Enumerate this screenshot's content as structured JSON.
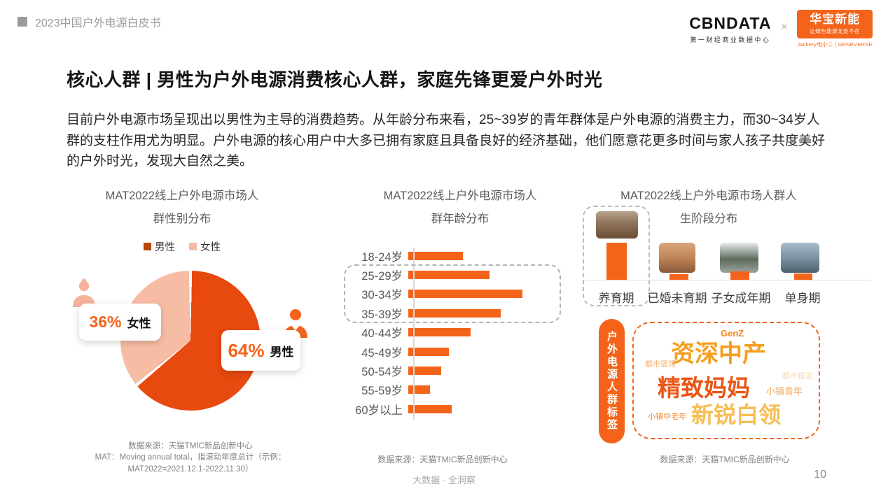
{
  "theme": {
    "accent_orange": "#F3641A",
    "title_gray": "#595959"
  },
  "header": {
    "breadcrumb": "2023中国户外电源白皮书",
    "cbn_logo": "CBNDATA",
    "cbn_sub": "第一财经商业数据中心",
    "cross": "×",
    "partner_logo": "华宝新能",
    "partner_sub": "让绿色能源无处不在",
    "partner_brands": "Jackery电小二 | GENEVERSE"
  },
  "title": "核心人群 | 男性为户外电源消费核心人群，家庭先锋更爱户外时光",
  "body_text": "目前户外电源市场呈现出以男性为主导的消费趋势。从年龄分布来看，25~39岁的青年群体是户外电源的消费主力，而30~34岁人群的支柱作用尤为明显。户外电源的核心用户中大多已拥有家庭且具备良好的经济基础，他们愿意花更多时间与家人孩子共度美好的户外时光，发现大自然之美。",
  "footer": {
    "tagline": "大数据 · 全洞察",
    "page_number": "10"
  },
  "chart_data": [
    {
      "type": "pie",
      "title": "MAT2022线上户外电源市场人群性别分布",
      "title_lines": [
        "MAT2022线上户外电源市场人",
        "群性别分布"
      ],
      "legend": [
        "男性",
        "女性"
      ],
      "legend_colors": [
        "#B9480E",
        "#F2BDA2"
      ],
      "labels": [
        "男性",
        "女性"
      ],
      "values": [
        64,
        36
      ],
      "unit": "%",
      "colors": [
        "#E8490F",
        "#F7BDA4"
      ],
      "callouts": [
        {
          "percent": "36%",
          "label": "女性"
        },
        {
          "percent": "64%",
          "label": "男性"
        }
      ],
      "source": "数据来源：天猫TMIC新品创新中心",
      "source_note_lines": [
        "MAT：Moving annual total，指滚动年度总计（示例：",
        "MAT2022=2021.12.1-2022.11.30）"
      ]
    },
    {
      "type": "bar",
      "orientation": "horizontal",
      "title": "MAT2022线上户外电源市场人群年龄分布",
      "title_lines": [
        "MAT2022线上户外电源市场人",
        "群年龄分布"
      ],
      "categories": [
        "18-24岁",
        "25-29岁",
        "30-34岁",
        "35-39岁",
        "40-44岁",
        "45-49岁",
        "50-54岁",
        "55-59岁",
        "60岁以上"
      ],
      "values": [
        10,
        15,
        21,
        17,
        11.5,
        7.5,
        6,
        4,
        8
      ],
      "values_note": "估算占比%（原图柱长未标数值）",
      "highlight_range": [
        "25-29岁",
        "35-39岁"
      ],
      "bar_color": "#F3641A",
      "source": "数据来源：天猫TMIC新品创新中心"
    },
    {
      "type": "bar",
      "orientation": "vertical",
      "title": "MAT2022线上户外电源市场人群人生阶段分布",
      "title_lines": [
        "MAT2022线上户外电源市场人群人",
        "生阶段分布"
      ],
      "categories": [
        "养育期",
        "已婚未育期",
        "子女成年期",
        "单身期"
      ],
      "values": [
        100,
        15,
        22,
        17
      ],
      "values_note": "相对柱高（原图未标数值）",
      "highlight": "养育期",
      "bar_color": "#F3641A",
      "photos": [
        "camping-family-photo",
        "desert-couple-photo",
        "snow-jeep-photo",
        "mountain-lake-photo"
      ],
      "source": "数据来源：天猫TMIC新品创新中心"
    },
    {
      "type": "other",
      "subtype": "wordcloud",
      "side_label": "户外电源人群标签",
      "words": [
        {
          "text": "GenZ",
          "size": 13,
          "color": "#F0861C",
          "weight": 700
        },
        {
          "text": "资深中产",
          "size": 34,
          "color": "#F59E1E",
          "weight": 700
        },
        {
          "text": "都市蓝领",
          "size": 11,
          "color": "#F5B171",
          "weight": 400
        },
        {
          "text": "精致妈妈",
          "size": 33,
          "color": "#E95513",
          "weight": 700
        },
        {
          "text": "都市银发",
          "size": 11,
          "color": "#FAD8AE",
          "weight": 400
        },
        {
          "text": "小镇青年",
          "size": 13,
          "color": "#F3A75C",
          "weight": 400
        },
        {
          "text": "新锐白领",
          "size": 32,
          "color": "#F6BE54",
          "weight": 700
        },
        {
          "text": "小镇中老年",
          "size": 11,
          "color": "#F08C2E",
          "weight": 400
        }
      ]
    }
  ]
}
